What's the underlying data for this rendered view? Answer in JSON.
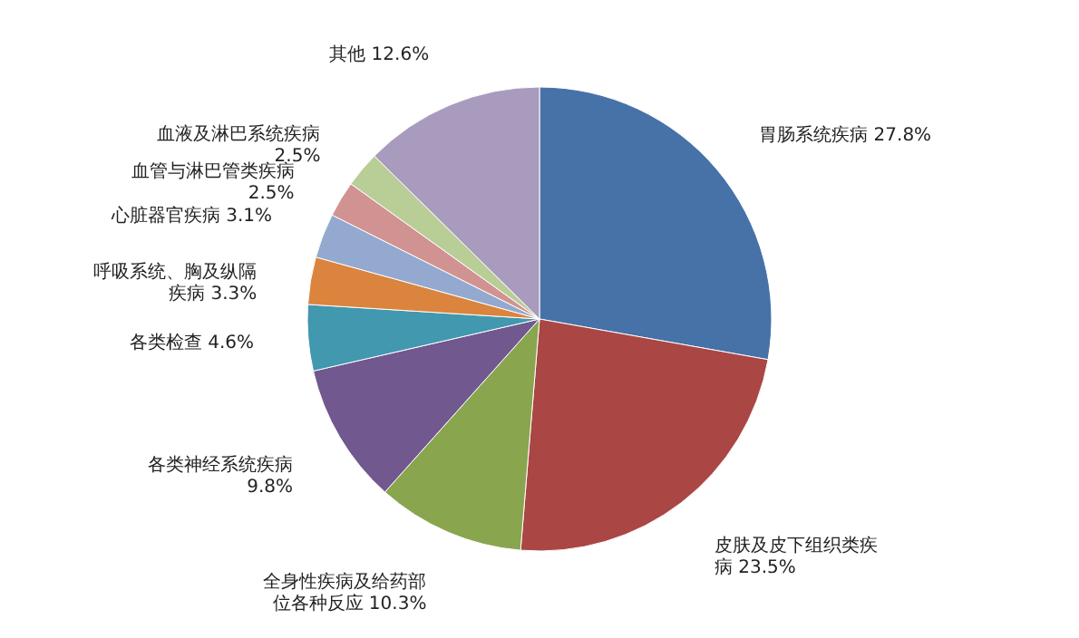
{
  "chart_data": {
    "type": "pie",
    "categories": [
      "胃肠系统疾病",
      "皮肤及皮下组织类疾病",
      "全身性疾病及给药部位各种反应",
      "各类神经系统疾病",
      "各类检查",
      "呼吸系统、胸及纵隔疾病",
      "心脏器官疾病",
      "血管与淋巴管类疾病",
      "血液及淋巴系统疾病",
      "其他"
    ],
    "values": [
      27.8,
      23.5,
      10.3,
      9.8,
      4.6,
      3.3,
      3.1,
      2.5,
      2.5,
      12.6
    ],
    "value_labels": [
      "27.8%",
      "23.5%",
      "10.3%",
      "9.8%",
      "4.6%",
      "3.3%",
      "3.1%",
      "2.5%",
      "2.5%",
      "12.6%"
    ],
    "colors": [
      "#4672a8",
      "#aa4644",
      "#89a54e",
      "#71588f",
      "#4198af",
      "#db843d",
      "#93a9cf",
      "#d19392",
      "#b9cd96",
      "#a99bbd"
    ],
    "legend": false
  }
}
